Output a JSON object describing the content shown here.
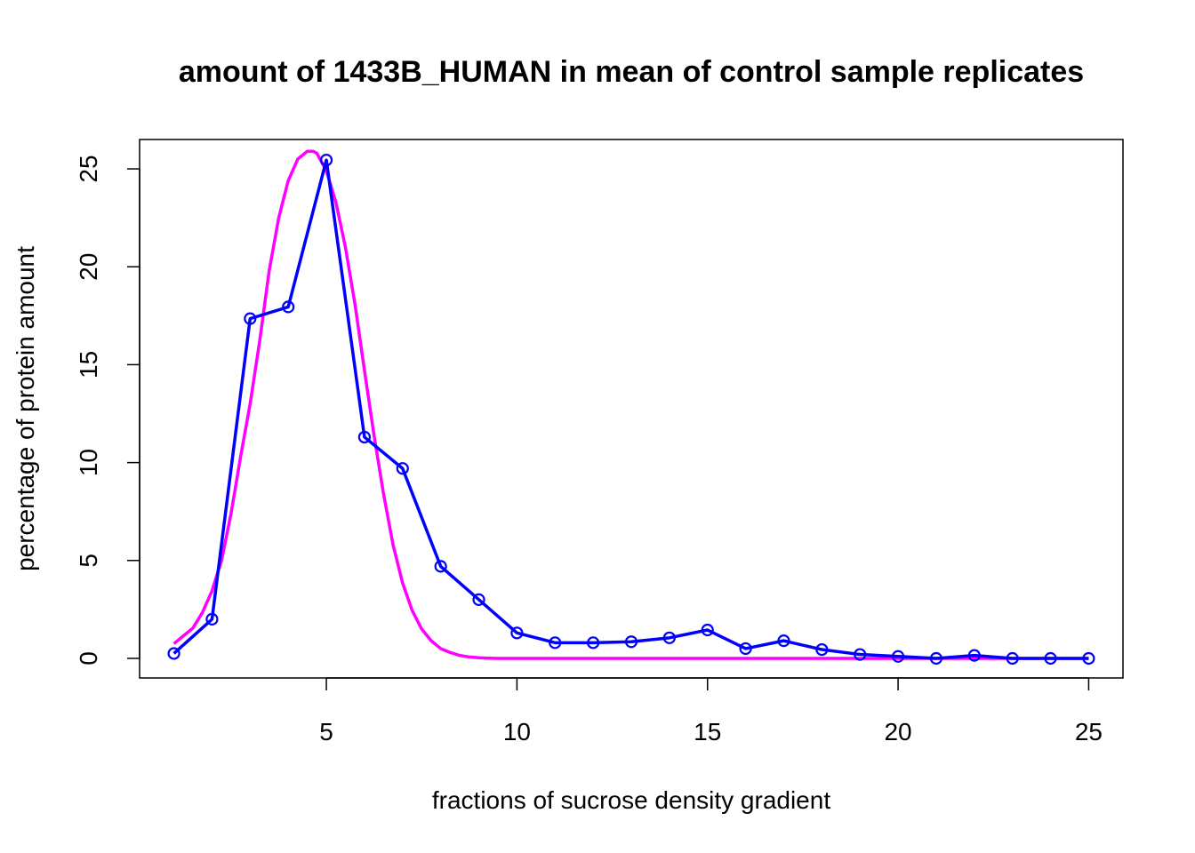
{
  "chart_data": {
    "type": "line",
    "title": "amount of 1433B_HUMAN in mean of control sample replicates",
    "xlabel": "fractions of sucrose density gradient",
    "ylabel": "percentage of protein amount",
    "xlim": [
      0.1,
      25.9
    ],
    "ylim": [
      -1.0,
      26.5
    ],
    "x_ticks": [
      5,
      10,
      15,
      20,
      25
    ],
    "y_ticks": [
      0,
      5,
      10,
      15,
      20,
      25
    ],
    "grid": false,
    "series": [
      {
        "color": "#0000ff",
        "style": "line+circles",
        "x": [
          1,
          2,
          3,
          4,
          5,
          6,
          7,
          8,
          9,
          10,
          11,
          12,
          13,
          14,
          15,
          16,
          17,
          18,
          19,
          20,
          21,
          22,
          23,
          24,
          25
        ],
        "y": [
          0.25,
          2.0,
          17.35,
          17.95,
          25.45,
          11.3,
          9.7,
          4.7,
          3.0,
          1.3,
          0.8,
          0.8,
          0.85,
          1.05,
          1.45,
          0.5,
          0.9,
          0.45,
          0.2,
          0.1,
          0.0,
          0.15,
          0.0,
          0.0,
          0.0
        ]
      },
      {
        "color": "#ff00ff",
        "style": "line",
        "x": [
          1.0,
          1.25,
          1.5,
          1.75,
          2.0,
          2.25,
          2.5,
          2.75,
          3.0,
          3.25,
          3.5,
          3.75,
          4.0,
          4.25,
          4.5,
          4.65,
          4.75,
          5.0,
          5.25,
          5.5,
          5.75,
          6.0,
          6.25,
          6.5,
          6.75,
          7.0,
          7.25,
          7.5,
          7.75,
          8.0,
          8.25,
          8.5,
          8.75,
          9.0,
          9.25,
          9.5,
          9.75,
          10.0,
          10.5,
          11.0,
          12.0,
          14.0,
          16.0,
          18.0,
          20.0,
          22.0,
          24.0,
          25.0
        ],
        "y": [
          0.75,
          1.15,
          1.55,
          2.35,
          3.45,
          5.0,
          7.4,
          10.3,
          13.0,
          16.2,
          19.8,
          22.5,
          24.4,
          25.5,
          25.9,
          25.9,
          25.8,
          24.9,
          23.3,
          21.0,
          18.1,
          14.7,
          11.4,
          8.4,
          5.8,
          3.85,
          2.45,
          1.5,
          0.9,
          0.5,
          0.3,
          0.15,
          0.07,
          0.03,
          0.01,
          0.0,
          0.0,
          0.0,
          0.0,
          0.0,
          0.0,
          0.0,
          0.0,
          0.0,
          0.0,
          0.0,
          0.0,
          0.0
        ]
      }
    ]
  }
}
